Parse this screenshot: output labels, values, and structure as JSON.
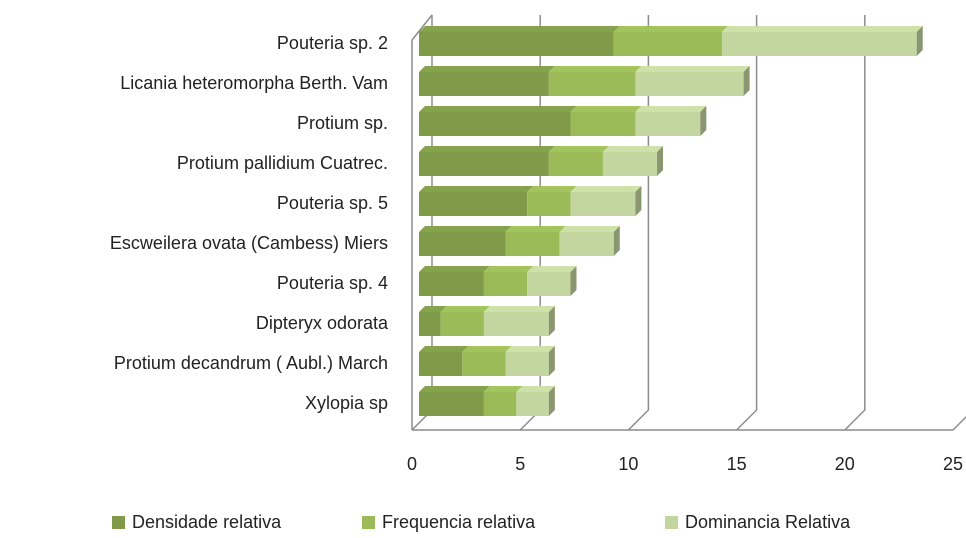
{
  "chart_data": {
    "type": "bar",
    "orientation": "horizontal",
    "stacked": true,
    "categories": [
      "Pouteria sp. 2",
      "Licania heteromorpha Berth. Vam",
      "Protium sp.",
      "Protium pallidium Cuatrec.",
      "Pouteria sp. 5",
      "Escweilera ovata (Cambess) Miers",
      "Pouteria sp. 4",
      "Dipteryx odorata",
      "Protium decandrum ( Aubl.) March",
      "Xylopia sp"
    ],
    "series": [
      {
        "name": "Densidade relativa",
        "color": "#7f9a48",
        "values": [
          9,
          6,
          7,
          6,
          5,
          4,
          3,
          1,
          2,
          3
        ]
      },
      {
        "name": "Frequencia relativa",
        "color": "#9bbb59",
        "values": [
          5,
          4,
          3,
          2.5,
          2,
          2.5,
          2,
          2,
          2,
          1.5
        ]
      },
      {
        "name": "Dominancia Relativa",
        "color": "#c4d6a0",
        "values": [
          9,
          5,
          3,
          2.5,
          3,
          2.5,
          2,
          3,
          2,
          1.5
        ]
      }
    ],
    "xlim": [
      0,
      25
    ],
    "xticks": [
      0,
      5,
      10,
      15,
      20,
      25
    ],
    "grid": true,
    "legend": "bottom"
  }
}
